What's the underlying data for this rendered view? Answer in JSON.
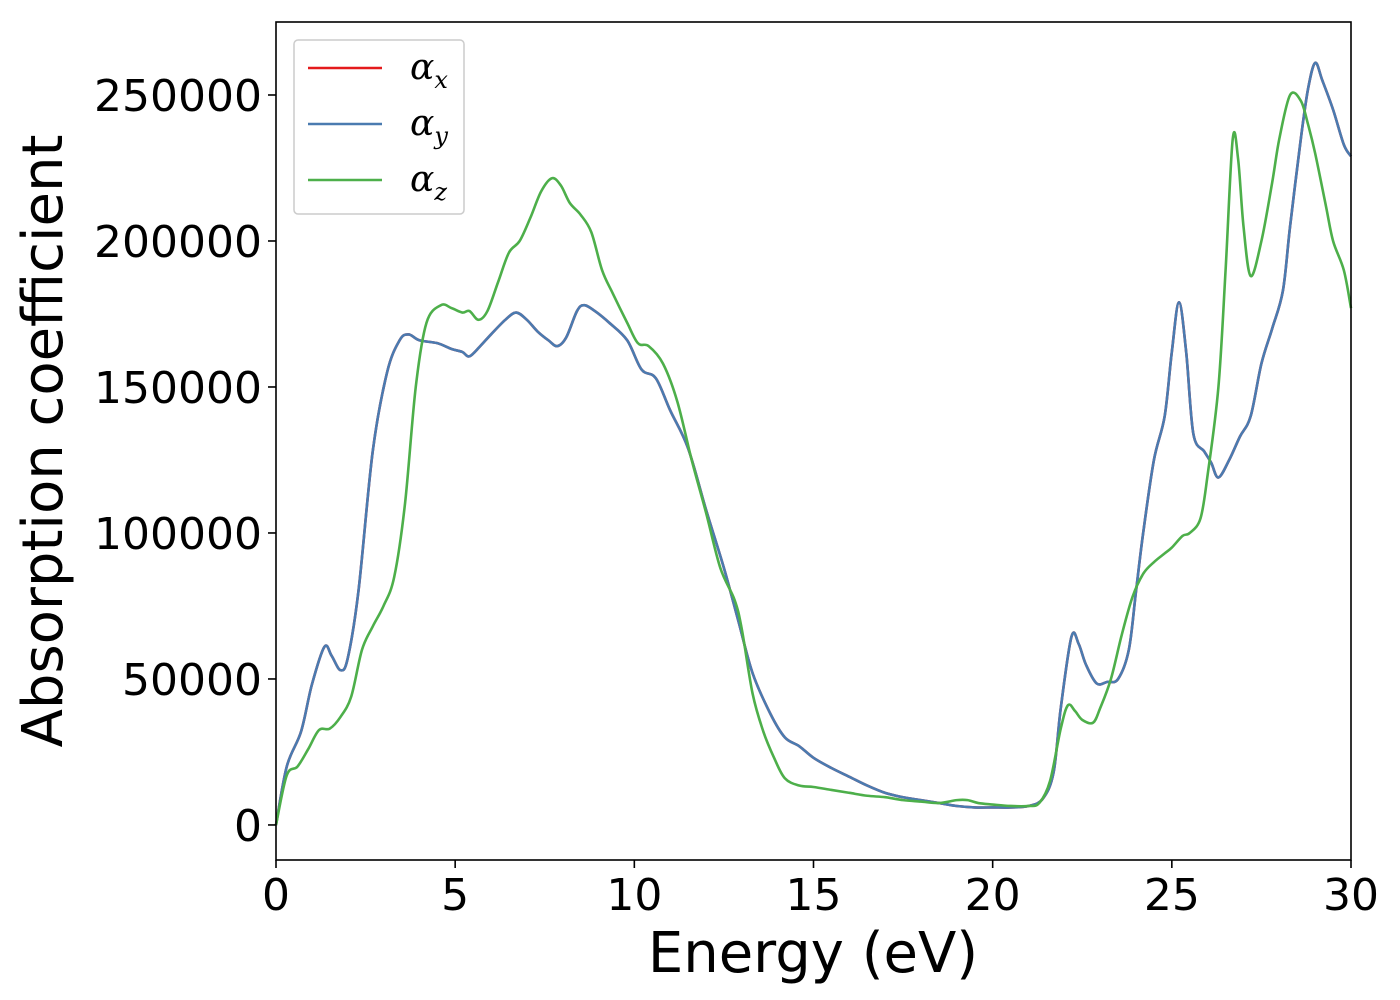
{
  "chart_data": {
    "type": "line",
    "title": "",
    "xlabel": "Energy (eV)",
    "ylabel": "Absorption coefficient",
    "xlim": [
      0,
      30
    ],
    "ylim": [
      -12000,
      275000
    ],
    "xticks": [
      0,
      5,
      10,
      15,
      20,
      25,
      30
    ],
    "xtick_labels": [
      "0",
      "5",
      "10",
      "15",
      "20",
      "25",
      "30"
    ],
    "yticks": [
      0,
      50000,
      100000,
      150000,
      200000,
      250000
    ],
    "ytick_labels": [
      "0",
      "50000",
      "100000",
      "150000",
      "200000",
      "250000"
    ],
    "grid": false,
    "legend_position": "top-left",
    "series": [
      {
        "name": "α",
        "sub": "x",
        "color": "#e41a1c",
        "points": [
          [
            0,
            0
          ],
          [
            0.3,
            20000
          ],
          [
            0.7,
            32000
          ],
          [
            1.0,
            48000
          ],
          [
            1.35,
            61000
          ],
          [
            1.55,
            58000
          ],
          [
            1.8,
            53000
          ],
          [
            2.0,
            57000
          ],
          [
            2.3,
            80000
          ],
          [
            2.7,
            128000
          ],
          [
            3.1,
            155000
          ],
          [
            3.45,
            166000
          ],
          [
            3.7,
            168000
          ],
          [
            4.0,
            166000
          ],
          [
            4.5,
            165000
          ],
          [
            4.9,
            163000
          ],
          [
            5.2,
            162000
          ],
          [
            5.4,
            160500
          ],
          [
            5.7,
            164000
          ],
          [
            6.0,
            168000
          ],
          [
            6.4,
            173000
          ],
          [
            6.7,
            175500
          ],
          [
            7.0,
            173000
          ],
          [
            7.3,
            169000
          ],
          [
            7.6,
            166000
          ],
          [
            7.85,
            164000
          ],
          [
            8.1,
            167000
          ],
          [
            8.4,
            176000
          ],
          [
            8.6,
            178000
          ],
          [
            8.9,
            176000
          ],
          [
            9.3,
            172000
          ],
          [
            9.8,
            166000
          ],
          [
            10.2,
            156000
          ],
          [
            10.6,
            153000
          ],
          [
            11.0,
            142000
          ],
          [
            11.5,
            129000
          ],
          [
            12.0,
            108000
          ],
          [
            12.5,
            88000
          ],
          [
            12.9,
            70000
          ],
          [
            13.3,
            52000
          ],
          [
            13.8,
            38000
          ],
          [
            14.2,
            30000
          ],
          [
            14.6,
            27000
          ],
          [
            15.0,
            23000
          ],
          [
            15.5,
            19500
          ],
          [
            16.0,
            16500
          ],
          [
            16.5,
            13500
          ],
          [
            17.0,
            11000
          ],
          [
            17.5,
            9500
          ],
          [
            18.0,
            8500
          ],
          [
            18.5,
            7500
          ],
          [
            19.0,
            6500
          ],
          [
            19.5,
            6000
          ],
          [
            20.0,
            6000
          ],
          [
            20.5,
            6000
          ],
          [
            21.0,
            6500
          ],
          [
            21.4,
            9000
          ],
          [
            21.7,
            18000
          ],
          [
            21.9,
            40000
          ],
          [
            22.2,
            64500
          ],
          [
            22.4,
            62000
          ],
          [
            22.6,
            55000
          ],
          [
            22.9,
            48500
          ],
          [
            23.2,
            49000
          ],
          [
            23.5,
            50000
          ],
          [
            23.8,
            60000
          ],
          [
            24.0,
            80000
          ],
          [
            24.2,
            100000
          ],
          [
            24.5,
            125000
          ],
          [
            24.8,
            140000
          ],
          [
            25.0,
            162000
          ],
          [
            25.2,
            179000
          ],
          [
            25.4,
            162000
          ],
          [
            25.6,
            134000
          ],
          [
            25.9,
            128000
          ],
          [
            26.1,
            124000
          ],
          [
            26.3,
            119000
          ],
          [
            26.6,
            125000
          ],
          [
            26.9,
            133000
          ],
          [
            27.2,
            140000
          ],
          [
            27.5,
            158000
          ],
          [
            27.8,
            170000
          ],
          [
            28.1,
            183000
          ],
          [
            28.3,
            205000
          ],
          [
            28.6,
            235000
          ],
          [
            28.8,
            252000
          ],
          [
            29.0,
            261000
          ],
          [
            29.2,
            255000
          ],
          [
            29.5,
            245000
          ],
          [
            29.8,
            233000
          ],
          [
            30.0,
            229000
          ]
        ]
      },
      {
        "name": "α",
        "sub": "y",
        "color": "#4a7bb0",
        "points": [
          [
            0,
            0
          ],
          [
            0.3,
            20000
          ],
          [
            0.7,
            32000
          ],
          [
            1.0,
            48000
          ],
          [
            1.35,
            61000
          ],
          [
            1.55,
            58000
          ],
          [
            1.8,
            53000
          ],
          [
            2.0,
            57000
          ],
          [
            2.3,
            80000
          ],
          [
            2.7,
            128000
          ],
          [
            3.1,
            155000
          ],
          [
            3.45,
            166000
          ],
          [
            3.7,
            168000
          ],
          [
            4.0,
            166000
          ],
          [
            4.5,
            165000
          ],
          [
            4.9,
            163000
          ],
          [
            5.2,
            162000
          ],
          [
            5.4,
            160500
          ],
          [
            5.7,
            164000
          ],
          [
            6.0,
            168000
          ],
          [
            6.4,
            173000
          ],
          [
            6.7,
            175500
          ],
          [
            7.0,
            173000
          ],
          [
            7.3,
            169000
          ],
          [
            7.6,
            166000
          ],
          [
            7.85,
            164000
          ],
          [
            8.1,
            167000
          ],
          [
            8.4,
            176000
          ],
          [
            8.6,
            178000
          ],
          [
            8.9,
            176000
          ],
          [
            9.3,
            172000
          ],
          [
            9.8,
            166000
          ],
          [
            10.2,
            156000
          ],
          [
            10.6,
            153000
          ],
          [
            11.0,
            142000
          ],
          [
            11.5,
            129000
          ],
          [
            12.0,
            108000
          ],
          [
            12.5,
            88000
          ],
          [
            12.9,
            70000
          ],
          [
            13.3,
            52000
          ],
          [
            13.8,
            38000
          ],
          [
            14.2,
            30000
          ],
          [
            14.6,
            27000
          ],
          [
            15.0,
            23000
          ],
          [
            15.5,
            19500
          ],
          [
            16.0,
            16500
          ],
          [
            16.5,
            13500
          ],
          [
            17.0,
            11000
          ],
          [
            17.5,
            9500
          ],
          [
            18.0,
            8500
          ],
          [
            18.5,
            7500
          ],
          [
            19.0,
            6500
          ],
          [
            19.5,
            6000
          ],
          [
            20.0,
            6000
          ],
          [
            20.5,
            6000
          ],
          [
            21.0,
            6500
          ],
          [
            21.4,
            9000
          ],
          [
            21.7,
            18000
          ],
          [
            21.9,
            40000
          ],
          [
            22.2,
            64500
          ],
          [
            22.4,
            62000
          ],
          [
            22.6,
            55000
          ],
          [
            22.9,
            48500
          ],
          [
            23.2,
            49000
          ],
          [
            23.5,
            50000
          ],
          [
            23.8,
            60000
          ],
          [
            24.0,
            80000
          ],
          [
            24.2,
            100000
          ],
          [
            24.5,
            125000
          ],
          [
            24.8,
            140000
          ],
          [
            25.0,
            162000
          ],
          [
            25.2,
            179000
          ],
          [
            25.4,
            162000
          ],
          [
            25.6,
            134000
          ],
          [
            25.9,
            128000
          ],
          [
            26.1,
            124000
          ],
          [
            26.3,
            119000
          ],
          [
            26.6,
            125000
          ],
          [
            26.9,
            133000
          ],
          [
            27.2,
            140000
          ],
          [
            27.5,
            158000
          ],
          [
            27.8,
            170000
          ],
          [
            28.1,
            183000
          ],
          [
            28.3,
            205000
          ],
          [
            28.6,
            235000
          ],
          [
            28.8,
            252000
          ],
          [
            29.0,
            261000
          ],
          [
            29.2,
            255000
          ],
          [
            29.5,
            245000
          ],
          [
            29.8,
            233000
          ],
          [
            30.0,
            229000
          ]
        ]
      },
      {
        "name": "α",
        "sub": "z",
        "color": "#4daf4a",
        "points": [
          [
            0,
            0
          ],
          [
            0.3,
            17000
          ],
          [
            0.6,
            20000
          ],
          [
            0.9,
            26000
          ],
          [
            1.2,
            32500
          ],
          [
            1.5,
            33000
          ],
          [
            1.8,
            37000
          ],
          [
            2.1,
            44000
          ],
          [
            2.4,
            60000
          ],
          [
            2.7,
            68000
          ],
          [
            3.0,
            75000
          ],
          [
            3.3,
            85000
          ],
          [
            3.6,
            110000
          ],
          [
            3.9,
            150000
          ],
          [
            4.2,
            172000
          ],
          [
            4.6,
            178000
          ],
          [
            4.9,
            177000
          ],
          [
            5.2,
            175500
          ],
          [
            5.4,
            176000
          ],
          [
            5.65,
            173000
          ],
          [
            5.9,
            176000
          ],
          [
            6.2,
            186000
          ],
          [
            6.5,
            196000
          ],
          [
            6.8,
            200000
          ],
          [
            7.1,
            208000
          ],
          [
            7.4,
            217000
          ],
          [
            7.7,
            221500
          ],
          [
            7.95,
            219000
          ],
          [
            8.2,
            213000
          ],
          [
            8.5,
            209000
          ],
          [
            8.8,
            203000
          ],
          [
            9.1,
            190000
          ],
          [
            9.4,
            182000
          ],
          [
            9.8,
            172000
          ],
          [
            10.1,
            165000
          ],
          [
            10.4,
            164000
          ],
          [
            10.8,
            158000
          ],
          [
            11.2,
            145000
          ],
          [
            11.6,
            125000
          ],
          [
            12.0,
            107000
          ],
          [
            12.4,
            88000
          ],
          [
            12.8,
            77000
          ],
          [
            13.0,
            67000
          ],
          [
            13.3,
            45000
          ],
          [
            13.6,
            32000
          ],
          [
            13.9,
            23000
          ],
          [
            14.2,
            16000
          ],
          [
            14.6,
            13500
          ],
          [
            15.0,
            13000
          ],
          [
            15.5,
            12000
          ],
          [
            16.0,
            11000
          ],
          [
            16.5,
            10000
          ],
          [
            17.0,
            9500
          ],
          [
            17.5,
            8500
          ],
          [
            18.0,
            8000
          ],
          [
            18.5,
            7500
          ],
          [
            19.0,
            8500
          ],
          [
            19.3,
            8500
          ],
          [
            19.6,
            7500
          ],
          [
            20.0,
            7000
          ],
          [
            20.5,
            6500
          ],
          [
            21.0,
            6500
          ],
          [
            21.3,
            7500
          ],
          [
            21.6,
            15000
          ],
          [
            21.9,
            33000
          ],
          [
            22.1,
            41000
          ],
          [
            22.3,
            39000
          ],
          [
            22.5,
            36000
          ],
          [
            22.8,
            35000
          ],
          [
            23.0,
            40000
          ],
          [
            23.3,
            50000
          ],
          [
            23.6,
            65000
          ],
          [
            23.9,
            78000
          ],
          [
            24.2,
            86000
          ],
          [
            24.5,
            90000
          ],
          [
            24.8,
            93000
          ],
          [
            25.0,
            95000
          ],
          [
            25.3,
            99000
          ],
          [
            25.5,
            100000
          ],
          [
            25.8,
            105000
          ],
          [
            26.0,
            120000
          ],
          [
            26.3,
            150000
          ],
          [
            26.5,
            190000
          ],
          [
            26.7,
            235000
          ],
          [
            26.85,
            228000
          ],
          [
            27.0,
            205000
          ],
          [
            27.2,
            188000
          ],
          [
            27.5,
            200000
          ],
          [
            27.8,
            220000
          ],
          [
            28.0,
            235000
          ],
          [
            28.3,
            250000
          ],
          [
            28.6,
            248000
          ],
          [
            28.8,
            240000
          ],
          [
            29.0,
            230000
          ],
          [
            29.3,
            212000
          ],
          [
            29.5,
            200000
          ],
          [
            29.8,
            190000
          ],
          [
            30.0,
            177000
          ]
        ]
      }
    ]
  }
}
